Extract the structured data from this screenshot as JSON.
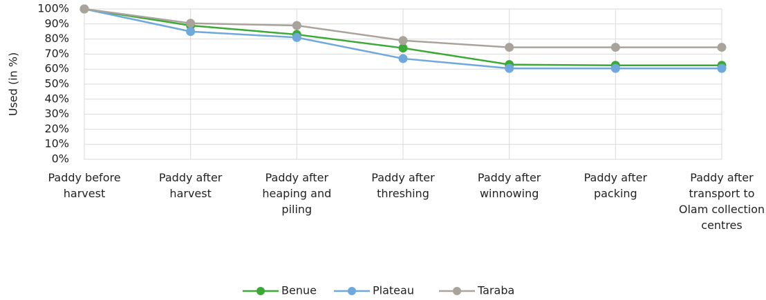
{
  "chart_data": {
    "type": "line",
    "y_label": "Used (in %)",
    "categories": [
      "Paddy before harvest",
      "Paddy after harvest",
      "Paddy after heaping and piling",
      "Paddy after threshing",
      "Paddy after winnowing",
      "Paddy after packing",
      "Paddy after transport to Olam collection centres"
    ],
    "series": [
      {
        "name": "Benue",
        "color": "#3aa935",
        "values": [
          100,
          89,
          83,
          74,
          63,
          62.5,
          62.5
        ]
      },
      {
        "name": "Plateau",
        "color": "#6fa8dc",
        "values": [
          100,
          85,
          81,
          67,
          60.5,
          60.5,
          60.5
        ]
      },
      {
        "name": "Taraba",
        "color": "#aaa39b",
        "values": [
          100,
          90.5,
          89,
          79,
          74.5,
          74.5,
          74.5
        ]
      }
    ],
    "ylim": [
      0,
      100
    ],
    "yticks": [
      {
        "value": 0,
        "label": "0%"
      },
      {
        "value": 10,
        "label": "10%"
      },
      {
        "value": 20,
        "label": "20%"
      },
      {
        "value": 30,
        "label": "30%"
      },
      {
        "value": 40,
        "label": "40%"
      },
      {
        "value": 50,
        "label": "50%"
      },
      {
        "value": 60,
        "label": "60%"
      },
      {
        "value": 70,
        "label": "70%"
      },
      {
        "value": 80,
        "label": "80%"
      },
      {
        "value": 90,
        "label": "90%"
      },
      {
        "value": 100,
        "label": "100%"
      }
    ],
    "grid": true,
    "legend": "bottom"
  }
}
